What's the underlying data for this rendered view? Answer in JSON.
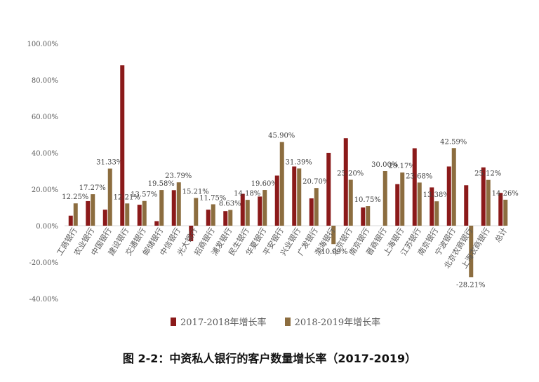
{
  "caption": "图 2-2：中资私人银行的客户数量增长率（2017-2019）",
  "chart_data": {
    "type": "bar",
    "yticks": [
      "100.00%",
      "80.00%",
      "60.00%",
      "40.00%",
      "20.00%",
      "0.00%",
      "-20.00%",
      "-40.00%"
    ],
    "ylim": [
      -40,
      100
    ],
    "categories": [
      "工商银行",
      "农业银行",
      "中国银行",
      "建设银行",
      "交通银行",
      "邮储银行",
      "中信银行",
      "光大银行",
      "招商银行",
      "浦发银行",
      "民生银行",
      "华夏银行",
      "平安银行",
      "兴业银行",
      "广发银行",
      "渤海银行",
      "北京银行",
      "南京银行",
      "晋商银行",
      "上海银行",
      "江苏银行",
      "南京银行",
      "宁波银行",
      "北京农商银行",
      "上海农商银行",
      "总计"
    ],
    "series": [
      {
        "name": "2017-2018年增长率",
        "color": "#8B1A1A",
        "values": [
          5.5,
          13.5,
          8.8,
          88.0,
          11.5,
          2.5,
          19.5,
          -8.5,
          8.8,
          8.0,
          17.5,
          16.0,
          27.5,
          32.5,
          15.0,
          40.0,
          48.0,
          10.0,
          null,
          22.8,
          42.5,
          21.0,
          32.5,
          22.2,
          32.0,
          18.0
        ]
      },
      {
        "name": "2018-2019年增长率",
        "color": "#8C6D3F",
        "values": [
          12.25,
          17.27,
          31.33,
          12.21,
          13.57,
          19.58,
          23.79,
          15.21,
          11.75,
          8.63,
          14.18,
          19.6,
          45.9,
          31.39,
          20.7,
          -10.09,
          25.2,
          10.75,
          30.0,
          29.17,
          23.68,
          13.38,
          42.59,
          -28.21,
          25.12,
          14.26
        ]
      }
    ],
    "data_labels": [
      "12.25%",
      "17.27%",
      "31.33%",
      "12.21%",
      "13.57%",
      "19.58%",
      "23.79%",
      "15.21%",
      "11.75%",
      "8.63%",
      "14.18%",
      "19.60%",
      "45.90%",
      "31.39%",
      "20.70%",
      "-10.09%",
      "25.20%",
      "10.75%",
      "30.00%",
      "29.17%",
      "23.68%",
      "13.38%",
      "42.59%",
      "-28.21%",
      "25.12%",
      "14.26%"
    ]
  }
}
